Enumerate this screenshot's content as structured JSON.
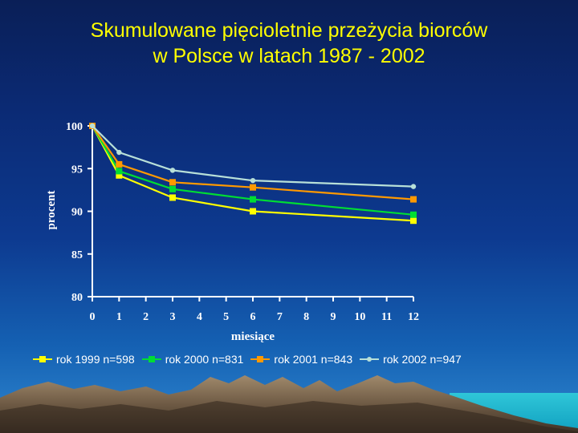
{
  "slide": {
    "title_line1": "Skumulowane pięcioletnie przeżycia biorców",
    "title_line2": "w Polsce w latach 1987 - 2002"
  },
  "chart_data": {
    "type": "line",
    "xlabel": "miesiące",
    "ylabel": "procent",
    "xlim": [
      0,
      12
    ],
    "ylim": [
      80,
      100
    ],
    "x_ticks": [
      0,
      1,
      2,
      3,
      4,
      5,
      6,
      7,
      8,
      9,
      10,
      11,
      12
    ],
    "y_ticks": [
      80,
      85,
      90,
      95,
      100
    ],
    "grid": false,
    "legend_position": "bottom",
    "series": [
      {
        "name": "rok 1999 n=598",
        "color": "#ffff00",
        "marker": "square",
        "x": [
          0,
          1,
          3,
          6,
          12
        ],
        "y": [
          100,
          94.2,
          91.6,
          90.0,
          88.9
        ]
      },
      {
        "name": "rok 2000 n=831",
        "color": "#00dd33",
        "marker": "square",
        "x": [
          0,
          1,
          3,
          6,
          12
        ],
        "y": [
          100,
          94.7,
          92.6,
          91.4,
          89.6
        ]
      },
      {
        "name": "rok 2001 n=843",
        "color": "#ff9900",
        "marker": "square",
        "x": [
          0,
          1,
          3,
          6,
          12
        ],
        "y": [
          100,
          95.5,
          93.4,
          92.8,
          91.4
        ]
      },
      {
        "name": "rok 2002 n=947",
        "color": "#b8e0d8",
        "marker": "circle",
        "x": [
          0,
          1,
          3,
          6,
          12
        ],
        "y": [
          100,
          96.9,
          94.8,
          93.6,
          92.9
        ]
      }
    ]
  }
}
